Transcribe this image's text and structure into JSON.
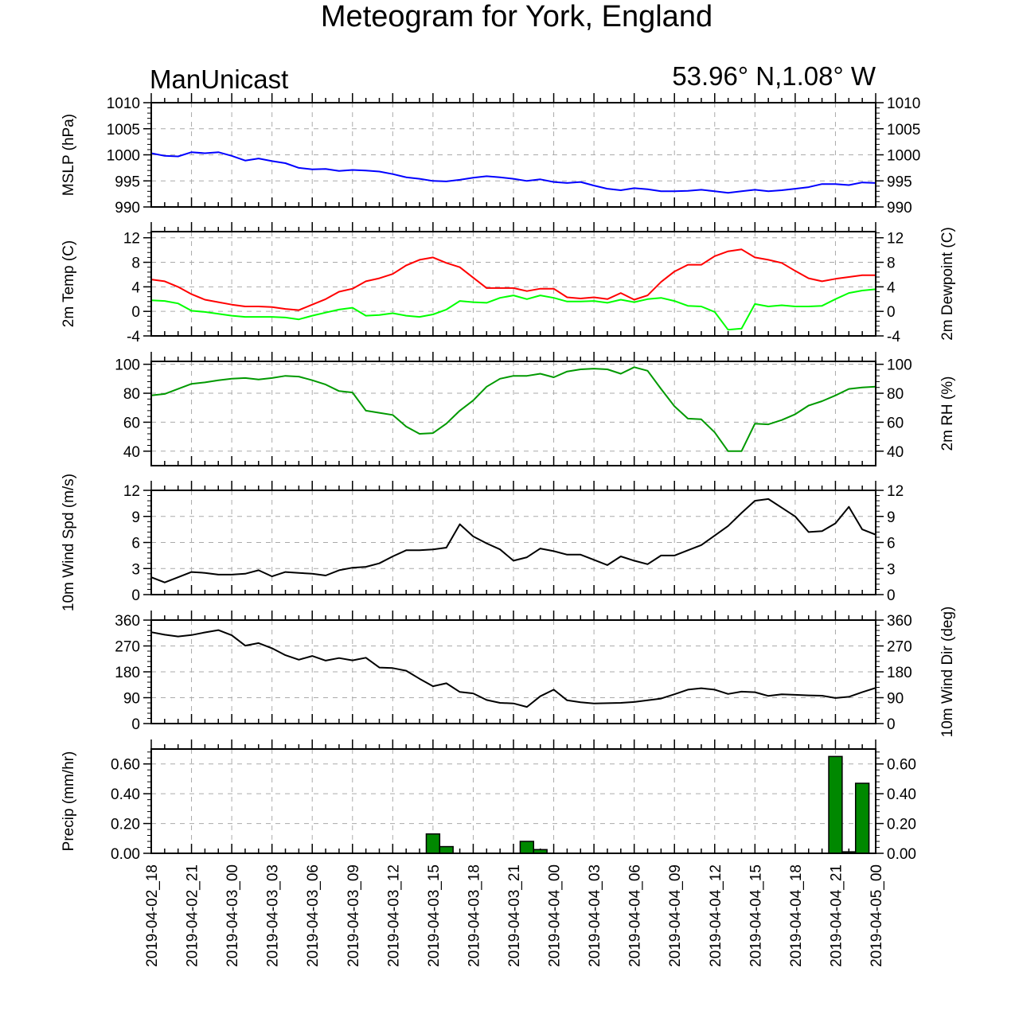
{
  "title": "Meteogram for York, England",
  "left_label": "ManUnicast",
  "right_label": "53.96° N,1.08° W",
  "colors": {
    "mslp": "#0000ff",
    "temp": "#ff0000",
    "dewpoint": "#00ff00",
    "rh": "#009900",
    "wind": "#000000",
    "precip_fill": "#008800",
    "grid": "#aaaaaa"
  },
  "x_ticks": [
    "2019-04-02_18",
    "2019-04-02_21",
    "2019-04-03_00",
    "2019-04-03_03",
    "2019-04-03_06",
    "2019-04-03_09",
    "2019-04-03_12",
    "2019-04-03_15",
    "2019-04-03_18",
    "2019-04-03_21",
    "2019-04-04_00",
    "2019-04-04_03",
    "2019-04-04_06",
    "2019-04-04_09",
    "2019-04-04_12",
    "2019-04-04_15",
    "2019-04-04_18",
    "2019-04-04_21",
    "2019-04-05_00"
  ],
  "chart_data": [
    {
      "type": "line",
      "ylabel": "MSLP (hPa)",
      "ylim": [
        990,
        1010
      ],
      "yticks": [
        990,
        995,
        1000,
        1005,
        1010
      ],
      "x_hours": [
        0,
        1,
        2,
        3,
        4,
        5,
        6,
        7,
        8,
        9,
        10,
        11,
        12,
        13,
        14,
        15,
        16,
        17,
        18,
        19,
        20,
        21,
        22,
        23,
        24,
        25,
        26,
        27,
        28,
        29,
        30,
        31,
        32,
        33,
        34,
        35,
        36,
        37,
        38,
        39,
        40,
        41,
        42,
        43,
        44,
        45,
        46,
        47,
        48,
        49,
        50,
        51,
        52,
        53,
        54
      ],
      "series": [
        {
          "values": [
            1000.3,
            999.8,
            999.7,
            1000.5,
            1000.3,
            1000.5,
            999.8,
            998.9,
            999.3,
            998.8,
            998.4,
            997.5,
            997.2,
            997.3,
            996.9,
            997.1,
            997.0,
            996.8,
            996.3,
            995.7,
            995.4,
            995.0,
            994.9,
            995.2,
            995.6,
            995.9,
            995.7,
            995.4,
            995.0,
            995.3,
            994.8,
            994.6,
            994.8,
            994.1,
            993.5,
            993.2,
            993.6,
            993.4,
            993.0,
            993.0,
            993.1,
            993.3,
            993.0,
            992.7,
            993.0,
            993.3,
            993.0,
            993.2,
            993.5,
            993.8,
            994.4,
            994.4,
            994.2,
            994.7,
            994.6
          ]
        }
      ]
    },
    {
      "type": "line",
      "ylabel": "2m Temp (C)",
      "ylabel_right": "2m Dewpoint (C)",
      "ylim": [
        -4,
        13
      ],
      "yticks": [
        -4,
        0,
        4,
        8,
        12
      ],
      "x_hours": [
        0,
        1,
        2,
        3,
        4,
        5,
        6,
        7,
        8,
        9,
        10,
        11,
        12,
        13,
        14,
        15,
        16,
        17,
        18,
        19,
        20,
        21,
        22,
        23,
        24,
        25,
        26,
        27,
        28,
        29,
        30,
        31,
        32,
        33,
        34,
        35,
        36,
        37,
        38,
        39,
        40,
        41,
        42,
        43,
        44,
        45,
        46,
        47,
        48,
        49,
        50,
        51,
        52,
        53,
        54
      ],
      "series": [
        {
          "values": [
            5.2,
            4.9,
            4.0,
            2.8,
            1.9,
            1.5,
            1.1,
            0.8,
            0.8,
            0.7,
            0.4,
            0.2,
            1.1,
            2.0,
            3.2,
            3.7,
            4.9,
            5.4,
            6.1,
            7.5,
            8.4,
            8.8,
            7.9,
            7.2,
            5.5,
            3.8,
            3.8,
            3.8,
            3.3,
            3.7,
            3.7,
            2.3,
            2.1,
            2.3,
            2.0,
            3.0,
            1.9,
            2.6,
            4.8,
            6.5,
            7.6,
            7.6,
            9.0,
            9.8,
            10.1,
            8.8,
            8.4,
            7.9,
            6.6,
            5.4,
            4.9,
            5.3,
            5.6,
            5.9,
            5.9
          ]
        },
        {
          "values": [
            1.8,
            1.7,
            1.3,
            0.1,
            -0.1,
            -0.4,
            -0.7,
            -0.9,
            -0.9,
            -0.9,
            -1.0,
            -1.3,
            -0.7,
            -0.2,
            0.3,
            0.6,
            -0.7,
            -0.6,
            -0.3,
            -0.7,
            -0.9,
            -0.5,
            0.3,
            1.7,
            1.5,
            1.4,
            2.2,
            2.6,
            2.0,
            2.6,
            2.2,
            1.6,
            1.6,
            1.7,
            1.4,
            1.9,
            1.5,
            2.0,
            2.2,
            1.7,
            0.9,
            0.8,
            -0.1,
            -3.0,
            -2.8,
            1.2,
            0.8,
            1.0,
            0.8,
            0.8,
            0.9,
            2.0,
            3.0,
            3.4,
            3.6
          ]
        }
      ]
    },
    {
      "type": "line",
      "ylabel_right": "2m RH (%)",
      "ylim": [
        30,
        102
      ],
      "yticks": [
        40,
        60,
        80,
        100
      ],
      "x_hours": [
        0,
        1,
        2,
        3,
        4,
        5,
        6,
        7,
        8,
        9,
        10,
        11,
        12,
        13,
        14,
        15,
        16,
        17,
        18,
        19,
        20,
        21,
        22,
        23,
        24,
        25,
        26,
        27,
        28,
        29,
        30,
        31,
        32,
        33,
        34,
        35,
        36,
        37,
        38,
        39,
        40,
        41,
        42,
        43,
        44,
        45,
        46,
        47,
        48,
        49,
        50,
        51,
        52,
        53,
        54
      ],
      "series": [
        {
          "values": [
            78.5,
            79.5,
            83.0,
            86.5,
            87.5,
            89.0,
            90.0,
            90.5,
            89.5,
            90.5,
            92.0,
            91.5,
            89.0,
            86.0,
            81.5,
            80.5,
            68.0,
            66.5,
            65.0,
            57.0,
            52.0,
            52.5,
            59.0,
            68.0,
            75.0,
            84.5,
            90.0,
            92.0,
            92.0,
            93.5,
            91.0,
            95.0,
            96.5,
            97.0,
            96.5,
            93.5,
            98.0,
            95.5,
            83.0,
            71.0,
            62.5,
            62.0,
            53.0,
            40.0,
            40.0,
            59.0,
            58.5,
            61.5,
            65.5,
            71.5,
            74.5,
            78.5,
            83.0,
            84.0,
            84.5
          ]
        }
      ]
    },
    {
      "type": "line",
      "ylabel": "10m Wind Spd (m/s)",
      "ylim": [
        0,
        12
      ],
      "yticks": [
        0,
        3,
        6,
        9,
        12
      ],
      "x_hours": [
        0,
        1,
        2,
        3,
        4,
        5,
        6,
        7,
        8,
        9,
        10,
        11,
        12,
        13,
        14,
        15,
        16,
        17,
        18,
        19,
        20,
        21,
        22,
        23,
        24,
        25,
        26,
        27,
        28,
        29,
        30,
        31,
        32,
        33,
        34,
        35,
        36,
        37,
        38,
        39,
        40,
        41,
        42,
        43,
        44,
        45,
        46,
        47,
        48,
        49,
        50,
        51,
        52,
        53,
        54
      ],
      "series": [
        {
          "values": [
            2.0,
            1.4,
            2.0,
            2.6,
            2.5,
            2.3,
            2.3,
            2.4,
            2.8,
            2.1,
            2.6,
            2.5,
            2.4,
            2.2,
            2.8,
            3.1,
            3.2,
            3.6,
            4.4,
            5.1,
            5.1,
            5.2,
            5.4,
            8.1,
            6.7,
            5.9,
            5.2,
            3.9,
            4.3,
            5.3,
            5.0,
            4.6,
            4.6,
            4.0,
            3.4,
            4.4,
            3.9,
            3.5,
            4.5,
            4.5,
            5.1,
            5.7,
            6.8,
            7.9,
            9.4,
            10.8,
            11.0,
            10.0,
            9.0,
            7.2,
            7.3,
            8.2,
            10.1,
            7.5,
            6.9
          ]
        }
      ]
    },
    {
      "type": "line",
      "ylabel_right": "10m Wind Dir (deg)",
      "ylim": [
        0,
        360
      ],
      "yticks": [
        0,
        90,
        180,
        270,
        360
      ],
      "x_hours": [
        0,
        1,
        2,
        3,
        4,
        5,
        6,
        7,
        8,
        9,
        10,
        11,
        12,
        13,
        14,
        15,
        16,
        17,
        18,
        19,
        20,
        21,
        22,
        23,
        24,
        25,
        26,
        27,
        28,
        29,
        30,
        31,
        32,
        33,
        34,
        35,
        36,
        37,
        38,
        39,
        40,
        41,
        42,
        43,
        44,
        45,
        46,
        47,
        48,
        49,
        50,
        51,
        52,
        53,
        54
      ],
      "series": [
        {
          "values": [
            318,
            309,
            303,
            308,
            317,
            325,
            307,
            271,
            280,
            262,
            238,
            222,
            235,
            219,
            228,
            220,
            229,
            195,
            193,
            184,
            156,
            130,
            140,
            110,
            105,
            82,
            72,
            70,
            58,
            95,
            118,
            81,
            74,
            70,
            71,
            72,
            75,
            81,
            87,
            102,
            118,
            123,
            118,
            103,
            111,
            109,
            96,
            102,
            100,
            98,
            97,
            89,
            93,
            109,
            124
          ]
        }
      ]
    },
    {
      "type": "bar",
      "ylabel": "Precip (mm/hr)",
      "ylim": [
        0,
        0.7
      ],
      "yticks": [
        "0.00",
        "0.20",
        "0.40",
        "0.60"
      ],
      "x_hours": [
        21,
        22,
        28,
        29,
        51,
        52,
        53
      ],
      "series": [
        {
          "values": [
            0.13,
            0.045,
            0.08,
            0.025,
            0.65,
            0.01,
            0.47
          ]
        }
      ]
    }
  ]
}
